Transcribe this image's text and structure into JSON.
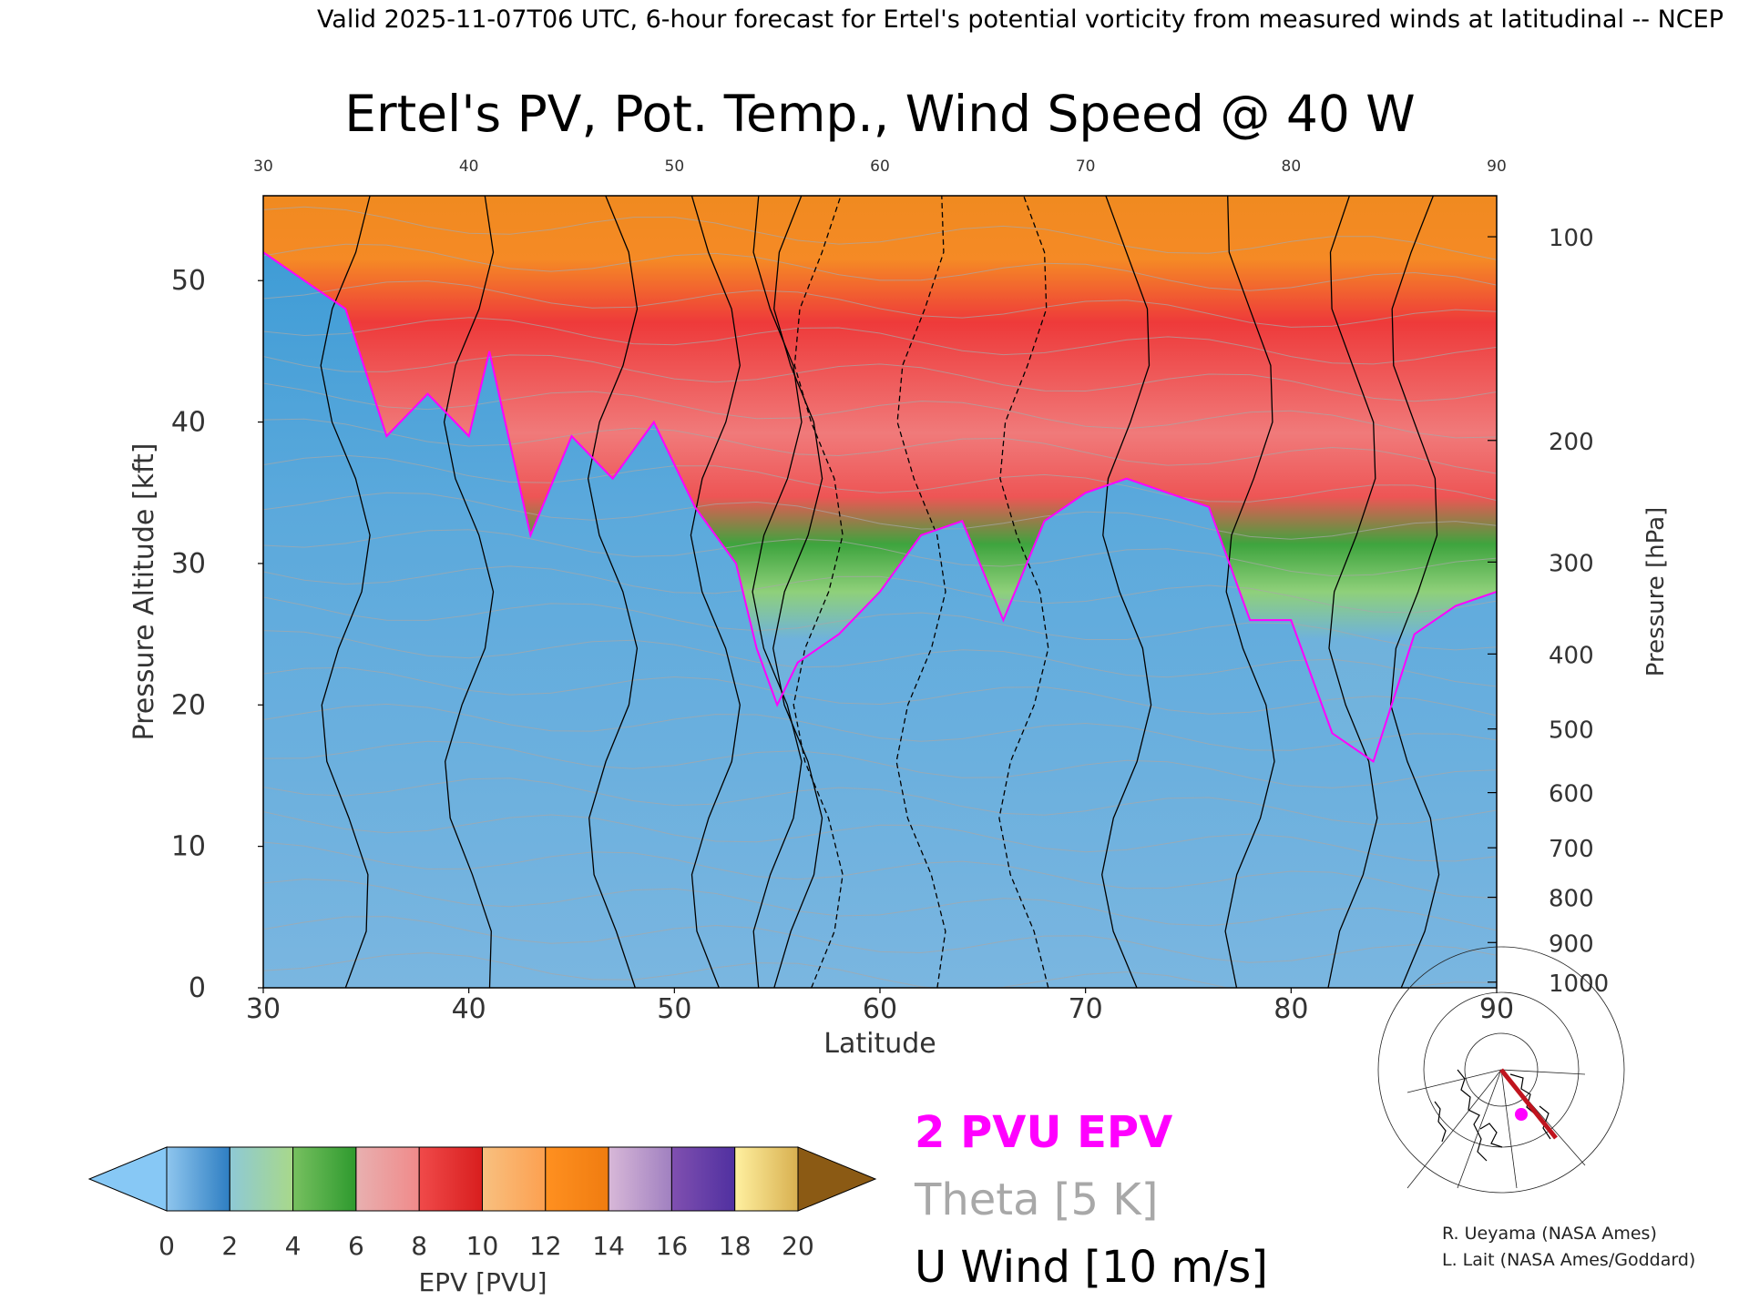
{
  "header": {
    "valid_line": "Valid 2025-11-07T06 UTC, 6-hour forecast for Ertel's potential vorticity from measured winds at latitudinal -- NCEP"
  },
  "chart_data": {
    "type": "heatmap",
    "title": "Ertel's PV, Pot. Temp., Wind Speed @ 40 W",
    "xlabel": "Latitude",
    "ylabel": "Pressure Altitude [kft]",
    "y2label": "Pressure [hPa]",
    "xlim": [
      30,
      90
    ],
    "ylim": [
      0,
      56
    ],
    "x_ticks": [
      "30",
      "40",
      "50",
      "60",
      "70",
      "80",
      "90"
    ],
    "y_ticks": [
      "0",
      "10",
      "20",
      "30",
      "40",
      "50"
    ],
    "pressure_ticks": [
      {
        "label": "1000",
        "kft": 0.4
      },
      {
        "label": "900",
        "kft": 3.2
      },
      {
        "label": "800",
        "kft": 6.4
      },
      {
        "label": "700",
        "kft": 9.9
      },
      {
        "label": "600",
        "kft": 13.8
      },
      {
        "label": "500",
        "kft": 18.3
      },
      {
        "label": "400",
        "kft": 23.6
      },
      {
        "label": "300",
        "kft": 30.1
      },
      {
        "label": "200",
        "kft": 38.7
      },
      {
        "label": "100",
        "kft": 53.1
      }
    ],
    "tropopause_2pvu_kft": [
      {
        "lat": 30,
        "kft": 52
      },
      {
        "lat": 32,
        "kft": 50
      },
      {
        "lat": 34,
        "kft": 48
      },
      {
        "lat": 36,
        "kft": 39
      },
      {
        "lat": 38,
        "kft": 42
      },
      {
        "lat": 40,
        "kft": 39
      },
      {
        "lat": 41,
        "kft": 45
      },
      {
        "lat": 43,
        "kft": 32
      },
      {
        "lat": 45,
        "kft": 39
      },
      {
        "lat": 47,
        "kft": 36
      },
      {
        "lat": 49,
        "kft": 40
      },
      {
        "lat": 51,
        "kft": 34
      },
      {
        "lat": 53,
        "kft": 30
      },
      {
        "lat": 54,
        "kft": 24
      },
      {
        "lat": 55,
        "kft": 20
      },
      {
        "lat": 56,
        "kft": 23
      },
      {
        "lat": 58,
        "kft": 25
      },
      {
        "lat": 60,
        "kft": 28
      },
      {
        "lat": 62,
        "kft": 32
      },
      {
        "lat": 64,
        "kft": 33
      },
      {
        "lat": 66,
        "kft": 26
      },
      {
        "lat": 68,
        "kft": 33
      },
      {
        "lat": 70,
        "kft": 35
      },
      {
        "lat": 72,
        "kft": 36
      },
      {
        "lat": 74,
        "kft": 35
      },
      {
        "lat": 76,
        "kft": 34
      },
      {
        "lat": 78,
        "kft": 26
      },
      {
        "lat": 80,
        "kft": 26
      },
      {
        "lat": 82,
        "kft": 18
      },
      {
        "lat": 84,
        "kft": 16
      },
      {
        "lat": 86,
        "kft": 25
      },
      {
        "lat": 88,
        "kft": 27
      },
      {
        "lat": 90,
        "kft": 28
      }
    ],
    "colorbar": {
      "label": "EPV [PVU]",
      "ticks": [
        "0",
        "2",
        "4",
        "6",
        "8",
        "10",
        "12",
        "14",
        "16",
        "18",
        "20"
      ],
      "under_color": "#87c8f5",
      "over_color": "#8b5a14",
      "bands": [
        {
          "from": 0,
          "to": 2,
          "colors": [
            "#8fc6ee",
            "#2e7ec2"
          ]
        },
        {
          "from": 2,
          "to": 4,
          "colors": [
            "#8ec9d6",
            "#a8d88a"
          ]
        },
        {
          "from": 4,
          "to": 6,
          "colors": [
            "#77c060",
            "#2e9a2e"
          ]
        },
        {
          "from": 6,
          "to": 8,
          "colors": [
            "#e8b0b0",
            "#f08a8a"
          ]
        },
        {
          "from": 8,
          "to": 10,
          "colors": [
            "#f04a4a",
            "#d81e1e"
          ]
        },
        {
          "from": 10,
          "to": 12,
          "colors": [
            "#f8c080",
            "#fca050"
          ]
        },
        {
          "from": 12,
          "to": 14,
          "colors": [
            "#ff9020",
            "#f07c10"
          ]
        },
        {
          "from": 14,
          "to": 16,
          "colors": [
            "#d8b8d8",
            "#a080c0"
          ]
        },
        {
          "from": 16,
          "to": 18,
          "colors": [
            "#8050b0",
            "#5030a0"
          ]
        },
        {
          "from": 18,
          "to": 20,
          "colors": [
            "#fff0a0",
            "#d8b050"
          ]
        }
      ]
    },
    "legend": {
      "items": [
        {
          "label": "2 PVU EPV",
          "color": "#ff00ff"
        },
        {
          "label": "Theta [5 K]",
          "color": "#a8a8a8"
        },
        {
          "label": "U Wind [10 m/s]",
          "color": "#000000"
        }
      ]
    }
  },
  "credits": {
    "line1": "R. Ueyama (NASA Ames)",
    "line2": "L. Lait (NASA Ames/Goddard)"
  },
  "colors": {
    "tropopause": "#ff00ff",
    "theta": "#a8a8a8",
    "wind": "#000000",
    "map_track": "#c0141e",
    "map_point": "#ff00ff"
  }
}
